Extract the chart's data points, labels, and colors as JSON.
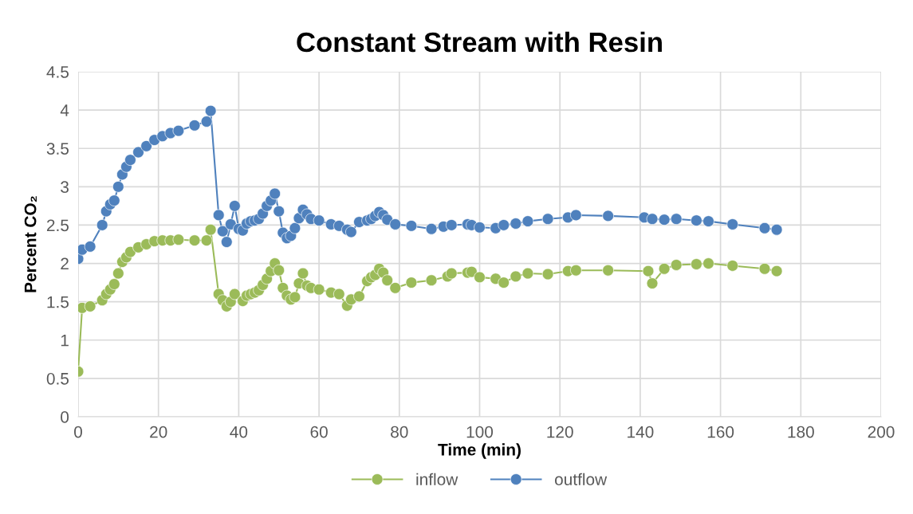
{
  "chart_data": {
    "type": "line",
    "title": "Constant Stream with Resin",
    "xlabel": "Time (min)",
    "ylabel": "Percent CO₂",
    "xlim": [
      0,
      200
    ],
    "xticks": [
      0,
      20,
      40,
      60,
      80,
      100,
      120,
      140,
      160,
      180,
      200
    ],
    "ylim": [
      0,
      4.5
    ],
    "yticks": [
      0,
      0.5,
      1,
      1.5,
      2,
      2.5,
      3,
      3.5,
      4,
      4.5
    ],
    "grid": true,
    "legend": "bottom",
    "marker": "circle",
    "line_style": "solid",
    "series": [
      {
        "name": "inflow",
        "color": "#9bbb59",
        "x": [
          0,
          1,
          3,
          6,
          7,
          8,
          9,
          10,
          11,
          12,
          13,
          15,
          17,
          19,
          21,
          23,
          25,
          29,
          32,
          33,
          35,
          36,
          37,
          38,
          39,
          41,
          42,
          43,
          44,
          45,
          46,
          47,
          48,
          49,
          50,
          51,
          52,
          53,
          54,
          55,
          56,
          57,
          58,
          60,
          63,
          65,
          67,
          68,
          70,
          72,
          73,
          74,
          75,
          76,
          77,
          79,
          83,
          88,
          92,
          93,
          97,
          98,
          100,
          104,
          106,
          109,
          112,
          117,
          122,
          124,
          132,
          142,
          143,
          146,
          149,
          154,
          157,
          163,
          171,
          174
        ],
        "values": [
          0.59,
          1.42,
          1.44,
          1.52,
          1.6,
          1.66,
          1.73,
          1.87,
          2.02,
          2.08,
          2.15,
          2.21,
          2.25,
          2.29,
          2.3,
          2.3,
          2.31,
          2.3,
          2.3,
          2.44,
          1.6,
          1.52,
          1.44,
          1.5,
          1.6,
          1.51,
          1.58,
          1.6,
          1.62,
          1.65,
          1.72,
          1.8,
          1.9,
          2.0,
          1.91,
          1.68,
          1.58,
          1.53,
          1.56,
          1.74,
          1.87,
          1.71,
          1.68,
          1.66,
          1.62,
          1.6,
          1.45,
          1.53,
          1.57,
          1.77,
          1.82,
          1.85,
          1.93,
          1.88,
          1.78,
          1.68,
          1.75,
          1.78,
          1.83,
          1.87,
          1.88,
          1.89,
          1.82,
          1.8,
          1.75,
          1.83,
          1.87,
          1.86,
          1.9,
          1.91,
          1.91,
          1.9,
          1.74,
          1.93,
          1.98,
          1.99,
          2.0,
          1.97,
          1.93,
          1.9
        ]
      },
      {
        "name": "outflow",
        "color": "#4f81bd",
        "x": [
          0,
          1,
          3,
          6,
          7,
          8,
          9,
          10,
          11,
          12,
          13,
          15,
          17,
          19,
          21,
          23,
          25,
          29,
          32,
          33,
          35,
          36,
          37,
          38,
          39,
          40,
          41,
          42,
          43,
          44,
          45,
          46,
          47,
          48,
          49,
          50,
          51,
          52,
          53,
          54,
          55,
          56,
          57,
          58,
          60,
          63,
          65,
          67,
          68,
          70,
          72,
          73,
          74,
          75,
          76,
          77,
          79,
          83,
          88,
          91,
          93,
          97,
          98,
          100,
          104,
          106,
          109,
          112,
          117,
          122,
          124,
          132,
          141,
          143,
          146,
          149,
          154,
          157,
          163,
          171,
          174
        ],
        "values": [
          2.06,
          2.18,
          2.22,
          2.5,
          2.68,
          2.77,
          2.82,
          3.0,
          3.16,
          3.26,
          3.35,
          3.45,
          3.53,
          3.61,
          3.66,
          3.7,
          3.73,
          3.8,
          3.85,
          3.99,
          2.63,
          2.42,
          2.28,
          2.51,
          2.75,
          2.45,
          2.43,
          2.52,
          2.55,
          2.56,
          2.58,
          2.65,
          2.75,
          2.82,
          2.91,
          2.68,
          2.4,
          2.33,
          2.36,
          2.46,
          2.59,
          2.7,
          2.64,
          2.58,
          2.56,
          2.51,
          2.49,
          2.44,
          2.41,
          2.54,
          2.56,
          2.58,
          2.62,
          2.67,
          2.63,
          2.57,
          2.51,
          2.49,
          2.45,
          2.48,
          2.5,
          2.51,
          2.5,
          2.47,
          2.46,
          2.5,
          2.52,
          2.55,
          2.58,
          2.6,
          2.63,
          2.62,
          2.6,
          2.58,
          2.57,
          2.58,
          2.56,
          2.55,
          2.51,
          2.46,
          2.44
        ]
      }
    ]
  }
}
